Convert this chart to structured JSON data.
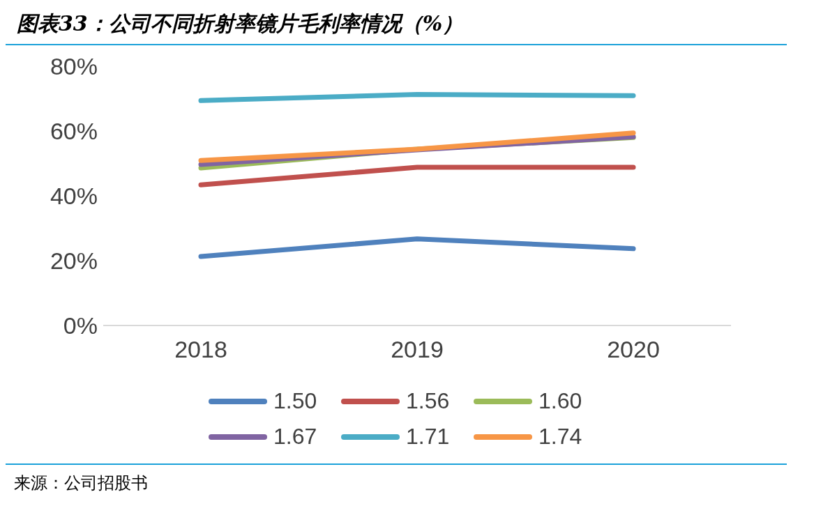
{
  "chart_data": {
    "type": "line",
    "title": "图表33：公司不同折射率镜片毛利率情况（%）",
    "annotations": [
      "来源：公司招股书"
    ],
    "categories": [
      "2018",
      "2019",
      "2020"
    ],
    "series": [
      {
        "name": "1.50",
        "color": "#4f81bd",
        "values": [
          21.3,
          26.7,
          23.7
        ]
      },
      {
        "name": "1.56",
        "color": "#c0504d",
        "values": [
          43.4,
          48.8,
          48.8
        ]
      },
      {
        "name": "1.60",
        "color": "#9bbb59",
        "values": [
          48.6,
          54.4,
          58
        ]
      },
      {
        "name": "1.67",
        "color": "#8064a2",
        "values": [
          49.7,
          54.2,
          58.2
        ]
      },
      {
        "name": "1.71",
        "color": "#4bacc6",
        "values": [
          69.4,
          71.3,
          70.9
        ]
      },
      {
        "name": "1.74",
        "color": "#f79646",
        "values": [
          50.9,
          54.4,
          59.4
        ]
      }
    ],
    "ylim": [
      0,
      80
    ],
    "yticks": [
      {
        "value": 0,
        "label": "0%"
      },
      {
        "value": 20,
        "label": "20%"
      },
      {
        "value": 40,
        "label": "40%"
      },
      {
        "value": 60,
        "label": "60%"
      },
      {
        "value": 80,
        "label": "80%"
      }
    ],
    "grid": false,
    "legend": "bottom",
    "line_style": "solid"
  }
}
